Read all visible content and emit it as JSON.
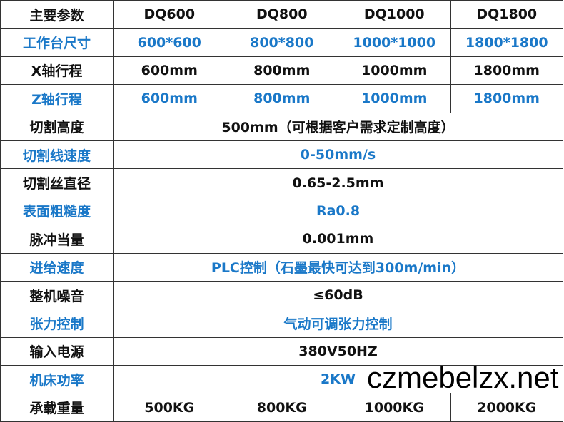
{
  "header": [
    "主要参数",
    "DQ600",
    "DQ800",
    "DQ1000",
    "DQ1800"
  ],
  "rows": [
    {
      "label": "工作台尺寸",
      "blue": true,
      "cells": [
        "600*600",
        "800*800",
        "1000*1000",
        "1800*1800"
      ]
    },
    {
      "label": "X轴行程",
      "blue": false,
      "cells": [
        "600mm",
        "800mm",
        "1000mm",
        "1800mm"
      ]
    },
    {
      "label": "Z轴行程",
      "blue": true,
      "cells": [
        "600mm",
        "800mm",
        "1000mm",
        "1800mm"
      ]
    },
    {
      "label": "切割高度",
      "blue": false,
      "cells": [
        "500mm（可根据客户需求定制高度）"
      ]
    },
    {
      "label": "切割线速度",
      "blue": true,
      "cells": [
        "0-50mm/s"
      ]
    },
    {
      "label": "切割丝直径",
      "blue": false,
      "cells": [
        "0.65-2.5mm"
      ]
    },
    {
      "label": "表面粗糙度",
      "blue": true,
      "cells": [
        "Ra0.8"
      ]
    },
    {
      "label": "脉冲当量",
      "blue": false,
      "cells": [
        "0.001mm"
      ]
    },
    {
      "label": "进给速度",
      "blue": true,
      "cells": [
        "PLC控制（石墨最快可达到300m/min）"
      ]
    },
    {
      "label": "整机噪音",
      "blue": false,
      "cells": [
        "≤60dB"
      ]
    },
    {
      "label": "张力控制",
      "blue": true,
      "cells": [
        "气动可调张力控制"
      ]
    },
    {
      "label": "输入电源",
      "blue": false,
      "cells": [
        "380V50HZ"
      ]
    },
    {
      "label": "机床功率",
      "blue": true,
      "cells": [
        "2KW"
      ]
    },
    {
      "label": "承载重量",
      "blue": false,
      "cells": [
        "500KG",
        "800KG",
        "1000KG",
        "2000KG"
      ]
    }
  ],
  "watermark": "czmebelzx.net",
  "colors": {
    "blue_text": "#1a78c8",
    "black_text": "#111111",
    "border": "#333333"
  }
}
